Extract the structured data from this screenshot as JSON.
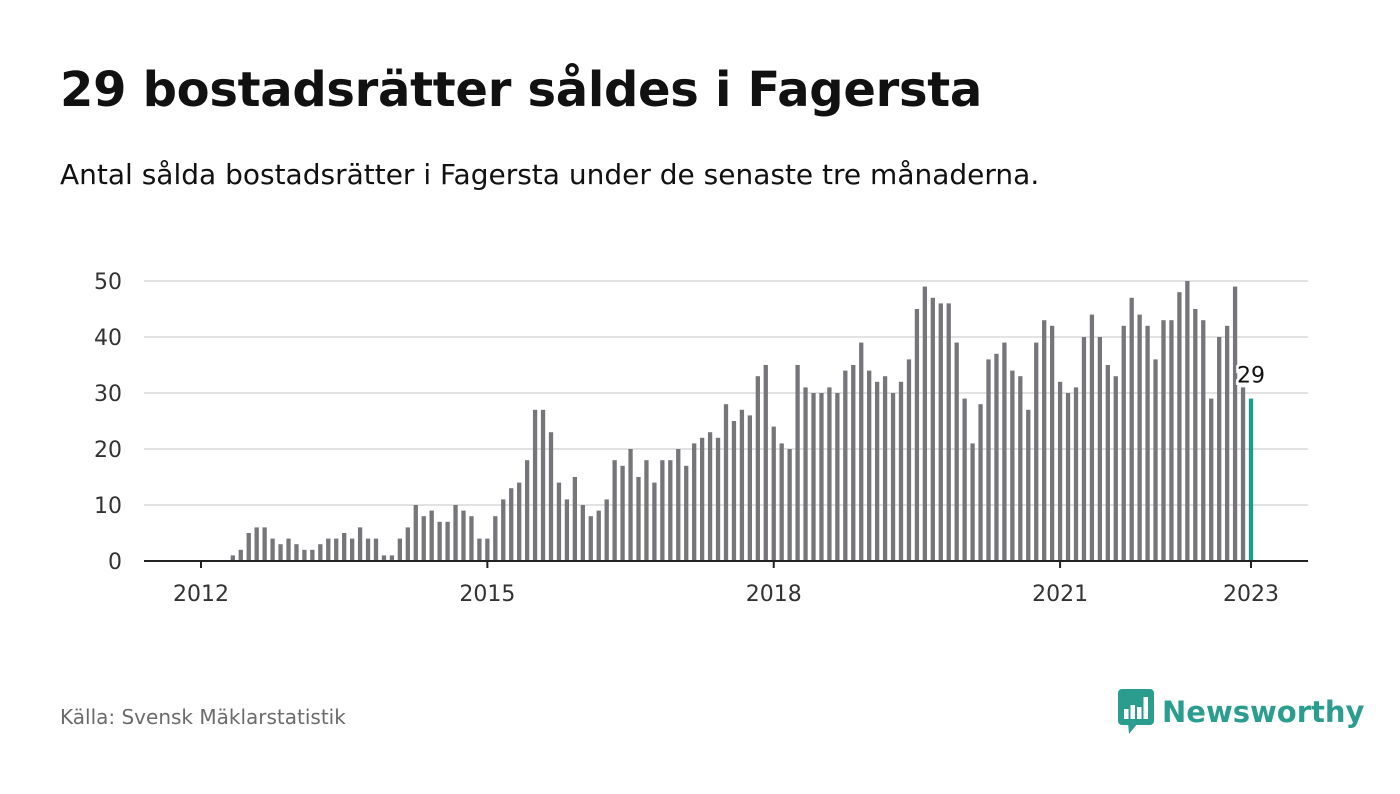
{
  "header": {
    "title": "29 bostadsrätter såldes i Fagersta",
    "subtitle": "Antal sålda bostadsrätter i Fagersta under de senaste tre månaderna."
  },
  "footer": {
    "source": "Källa: Svensk Mäklarstatistik",
    "brand": "Newsworthy",
    "brand_icon": "bar-chart-speech-bubble-icon"
  },
  "colors": {
    "bar": "#76757a",
    "highlight": "#1a9c8c",
    "grid": "#d9d9d9",
    "axis": "#222222",
    "brand": "#2a9d8f"
  },
  "chart_data": {
    "type": "bar",
    "title": "29 bostadsrätter såldes i Fagersta",
    "subtitle": "Antal sålda bostadsrätter i Fagersta under de senaste tre månaderna.",
    "xlabel": "",
    "ylabel": "",
    "x_start": "2012-01",
    "x_end": "2023-01",
    "x_frequency": "monthly",
    "x_ticks": [
      "2012",
      "2015",
      "2018",
      "2021",
      "2023"
    ],
    "y_ticks": [
      0,
      10,
      20,
      30,
      40,
      50
    ],
    "ylim": [
      0,
      50
    ],
    "grid": true,
    "values": [
      0,
      0,
      0,
      0,
      1,
      2,
      5,
      6,
      6,
      4,
      3,
      4,
      3,
      2,
      2,
      3,
      4,
      4,
      5,
      4,
      6,
      4,
      4,
      1,
      1,
      4,
      6,
      10,
      8,
      9,
      7,
      7,
      10,
      9,
      8,
      4,
      4,
      8,
      11,
      13,
      14,
      18,
      27,
      27,
      23,
      14,
      11,
      15,
      10,
      8,
      9,
      11,
      18,
      17,
      20,
      15,
      18,
      14,
      18,
      18,
      20,
      17,
      21,
      22,
      23,
      22,
      28,
      25,
      27,
      26,
      33,
      35,
      24,
      21,
      20,
      35,
      31,
      30,
      30,
      31,
      30,
      34,
      35,
      39,
      34,
      32,
      33,
      30,
      32,
      36,
      45,
      49,
      47,
      46,
      46,
      39,
      29,
      21,
      28,
      36,
      37,
      39,
      34,
      33,
      27,
      39,
      43,
      42,
      32,
      30,
      31,
      40,
      44,
      40,
      35,
      33,
      42,
      47,
      44,
      42,
      36,
      43,
      43,
      48,
      50,
      45,
      43,
      29,
      40,
      42,
      49,
      31,
      29
    ],
    "highlight_last": true,
    "annotation": "29"
  }
}
